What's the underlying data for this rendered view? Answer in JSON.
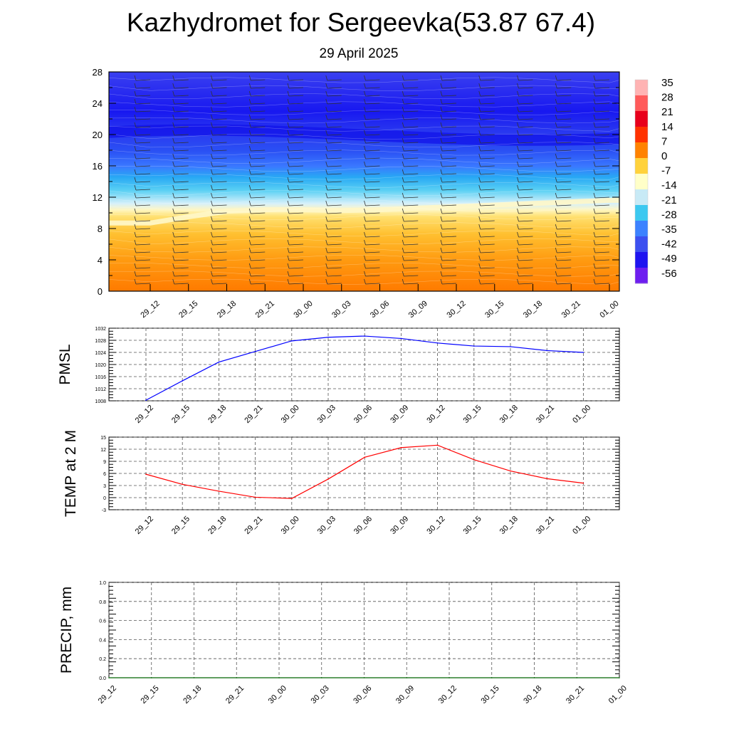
{
  "header": {
    "title": "Kazhydromet for Sergeevka(53.87 67.4)",
    "subtitle": "29 April 2025"
  },
  "chart_data": [
    {
      "type": "heatmap",
      "description_role": "vertical cross-section of temperature with wind barbs",
      "x": [
        "29_12",
        "29_15",
        "29_18",
        "29_21",
        "30_00",
        "30_03",
        "30_06",
        "30_09",
        "30_12",
        "30_15",
        "30_18",
        "30_21",
        "01_00"
      ],
      "y_ticks": [
        0,
        4,
        8,
        12,
        16,
        20,
        24,
        28
      ],
      "ylim": [
        0,
        28
      ],
      "colorbar": {
        "labels": [
          "35",
          "28",
          "21",
          "14",
          "7",
          "0",
          "-7",
          "-14",
          "-21",
          "-28",
          "-35",
          "-42",
          "-49",
          "-56"
        ],
        "colors": [
          "#ffb3b3",
          "#ff5a5a",
          "#e8001c",
          "#ff3200",
          "#ff8200",
          "#ffd23c",
          "#ffffc8",
          "#c8eaf6",
          "#3cc8f0",
          "#3c82ff",
          "#3c50f0",
          "#1e14f0",
          "#6e1ef0"
        ]
      },
      "freezing_level_km": [
        8.7,
        9.5,
        10.2,
        10.4,
        10.4,
        10.3,
        10.4,
        10.6,
        10.8,
        11.0,
        11.2,
        11.4,
        11.6
      ]
    },
    {
      "type": "line",
      "ylabel": "PMSL",
      "x": [
        "29_12",
        "29_15",
        "29_18",
        "29_21",
        "30_00",
        "30_03",
        "30_06",
        "30_09",
        "30_12",
        "30_15",
        "30_18",
        "30_21",
        "01_00"
      ],
      "y_ticks": [
        1008,
        1012,
        1016,
        1020,
        1024,
        1028,
        1032
      ],
      "ylim": [
        1008,
        1032
      ],
      "series": [
        {
          "color": "#0000ff",
          "values": [
            1008.2,
            1014.6,
            1020.8,
            1024.3,
            1027.8,
            1029.0,
            1029.4,
            1028.6,
            1027.1,
            1026.1,
            1025.9,
            1024.6,
            1024.0
          ]
        }
      ]
    },
    {
      "type": "line",
      "ylabel": "TEMP at 2 M",
      "x": [
        "29_12",
        "29_15",
        "29_18",
        "29_21",
        "30_00",
        "30_03",
        "30_06",
        "30_09",
        "30_12",
        "30_15",
        "30_18",
        "30_21",
        "01_00"
      ],
      "y_ticks": [
        -3,
        0,
        3,
        6,
        9,
        12,
        15
      ],
      "ylim": [
        -3,
        15
      ],
      "series": [
        {
          "color": "#ff0000",
          "values": [
            5.8,
            3.3,
            1.6,
            0.1,
            -0.2,
            4.6,
            10.0,
            12.4,
            13.0,
            9.4,
            6.6,
            4.7,
            3.6
          ]
        }
      ]
    },
    {
      "type": "line",
      "ylabel": "PRECIP, mm",
      "x": [
        "29_12",
        "29_15",
        "29_18",
        "29_21",
        "30_00",
        "30_03",
        "30_06",
        "30_09",
        "30_12",
        "30_15",
        "30_18",
        "30_21",
        "01_00"
      ],
      "y_ticks": [
        "0.0",
        "0.2",
        "0.4",
        "0.6",
        "0.8",
        "1.0"
      ],
      "ylim": [
        0,
        1
      ],
      "series": [
        {
          "color": "#006400",
          "values": [
            0,
            0,
            0,
            0,
            0,
            0,
            0,
            0,
            0,
            0,
            0,
            0,
            0
          ]
        }
      ]
    }
  ]
}
